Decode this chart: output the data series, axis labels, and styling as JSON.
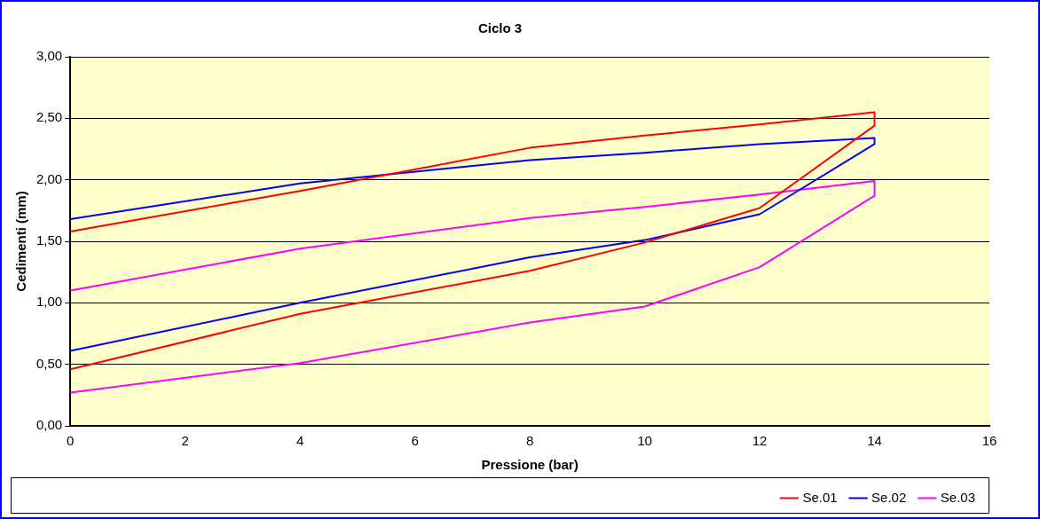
{
  "chart_data": {
    "type": "line",
    "title": "Ciclo 3",
    "xlabel": "Pressione (bar)",
    "ylabel": "Cedimenti (mm)",
    "x": [
      0,
      4,
      8,
      10,
      12,
      14,
      14,
      12,
      10,
      8,
      4,
      0
    ],
    "series": [
      {
        "name": "Se.01",
        "color": "#ff0000",
        "values": [
          0.46,
          0.91,
          1.26,
          1.49,
          1.77,
          2.44,
          2.55,
          2.45,
          2.36,
          2.26,
          1.91,
          1.58
        ]
      },
      {
        "name": "Se.02",
        "color": "#0000ff",
        "values": [
          0.61,
          1.0,
          1.37,
          1.51,
          1.72,
          2.29,
          2.34,
          2.29,
          2.22,
          2.16,
          1.97,
          1.68
        ]
      },
      {
        "name": "Se.03",
        "color": "#ff00ff",
        "values": [
          0.27,
          0.51,
          0.84,
          0.97,
          1.29,
          1.87,
          1.99,
          1.88,
          1.78,
          1.69,
          1.44,
          1.1
        ]
      }
    ],
    "xlim": [
      0,
      16
    ],
    "xticks": [
      0,
      2,
      4,
      6,
      8,
      10,
      12,
      14,
      16
    ],
    "ylim": [
      0,
      3
    ],
    "yticks": [
      {
        "value": 0,
        "label": "0,00"
      },
      {
        "value": 0.5,
        "label": "0,50"
      },
      {
        "value": 1,
        "label": "1,00"
      },
      {
        "value": 1.5,
        "label": "1,50"
      },
      {
        "value": 2,
        "label": "2,00"
      },
      {
        "value": 2.5,
        "label": "2,50"
      },
      {
        "value": 3,
        "label": "3,00"
      }
    ],
    "grid": "y",
    "legend": "bottom right",
    "marker": "none",
    "line_style": "solid"
  }
}
